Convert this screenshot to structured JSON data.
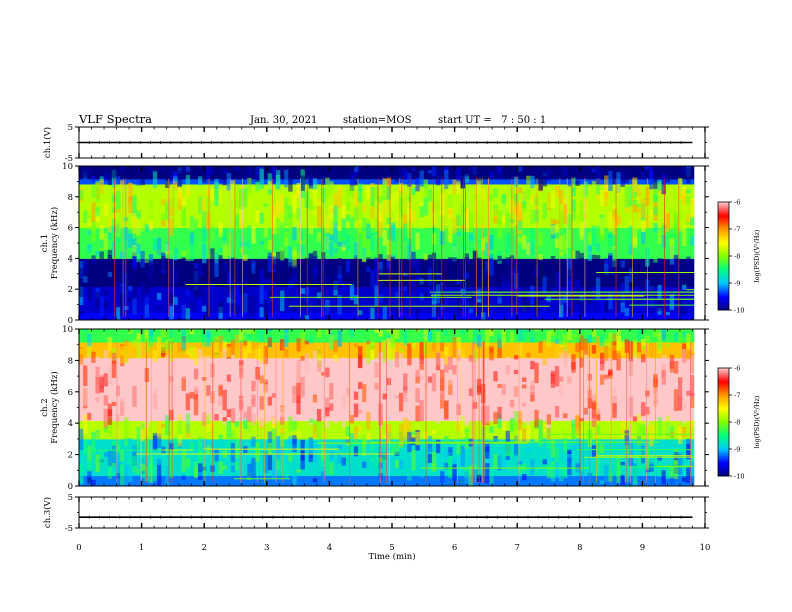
{
  "header": {
    "title": "VLF Spectra",
    "date": "Jan. 30, 2021",
    "station": "station=MOS",
    "start": "start UT =   7 : 50 : 1"
  },
  "chart_data": [
    {
      "type": "line",
      "name": "ch1-voltage",
      "ylabel": "ch.1(V)",
      "ylim": [
        -5,
        5
      ],
      "yticks": [
        "5",
        "-5"
      ],
      "series": [
        {
          "x": [
            0,
            9.8
          ],
          "values": [
            0,
            0
          ]
        }
      ]
    },
    {
      "type": "heatmap",
      "name": "ch1-spectrogram",
      "ylabel": "ch.1\nFrequency (kHz)",
      "ylim": [
        0,
        10
      ],
      "yticks": [
        "0",
        "2",
        "4",
        "6",
        "8",
        "10"
      ],
      "colorbar": {
        "label": "log(PSD)(V²/Hz)",
        "ticks": [
          "-6",
          "-7",
          "-8",
          "-9",
          "-10"
        ],
        "range": [
          -10,
          -6
        ]
      },
      "bands": [
        {
          "from": 0,
          "to": 0.5,
          "level": -9.5
        },
        {
          "from": 0.5,
          "to": 2.2,
          "level": -9.7
        },
        {
          "from": 2.2,
          "to": 4.0,
          "level": -10
        },
        {
          "from": 4.0,
          "to": 6.0,
          "level": -8.3
        },
        {
          "from": 6.0,
          "to": 8.8,
          "level": -7.8
        },
        {
          "from": 8.8,
          "to": 9.2,
          "level": -9.3
        },
        {
          "from": 9.2,
          "to": 10,
          "level": -10
        }
      ]
    },
    {
      "type": "heatmap",
      "name": "ch2-spectrogram",
      "ylabel": "ch.2\nFrequency (kHz)",
      "ylim": [
        0,
        10
      ],
      "yticks": [
        "0",
        "2",
        "4",
        "6",
        "8",
        "10"
      ],
      "colorbar": {
        "label": "log(PSD)(V²/Hz)",
        "ticks": [
          "-6",
          "-7",
          "-8",
          "-9",
          "-10"
        ],
        "range": [
          -10,
          -6
        ]
      },
      "bands": [
        {
          "from": 0,
          "to": 0.6,
          "level": -9.2
        },
        {
          "from": 0.6,
          "to": 3.0,
          "level": -8.8
        },
        {
          "from": 3.0,
          "to": 4.2,
          "level": -7.8
        },
        {
          "from": 4.2,
          "to": 8.2,
          "level": -6.0
        },
        {
          "from": 8.2,
          "to": 9.2,
          "level": -7.2
        },
        {
          "from": 9.2,
          "to": 10,
          "level": -8.3
        }
      ]
    },
    {
      "type": "line",
      "name": "ch3-voltage",
      "ylabel": "ch.3(V)",
      "ylim": [
        -5,
        5
      ],
      "yticks": [
        "5",
        "-5"
      ],
      "series": [
        {
          "x": [
            0,
            9.8
          ],
          "values": [
            -1.5,
            -1.5
          ]
        }
      ]
    }
  ],
  "xaxis": {
    "label": "Time (min)",
    "xlim": [
      0,
      10
    ],
    "ticks": [
      "0",
      "1",
      "2",
      "3",
      "4",
      "5",
      "6",
      "7",
      "8",
      "9",
      "10"
    ]
  },
  "colors": {
    "colormap": [
      "#000080",
      "#0000ff",
      "#00c8ff",
      "#00ff80",
      "#80ff00",
      "#ffff00",
      "#ff9900",
      "#ff0000",
      "#ffc8c8"
    ]
  }
}
